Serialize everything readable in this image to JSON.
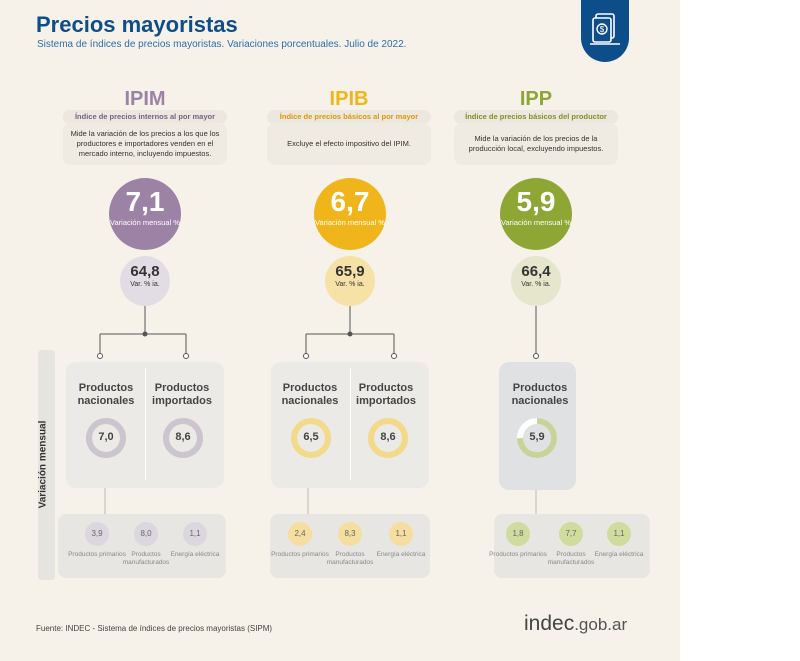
{
  "header": {
    "title": "Precios mayoristas",
    "subtitle": "Sistema de índices de precios mayoristas. Variaciones porcentuales. Julio de 2022."
  },
  "colors": {
    "ipim": "#9c82a5",
    "ipib": "#f0b51a",
    "ipp": "#8da634",
    "brand": "#0d4d8a"
  },
  "icon": "money-document-icon",
  "indices": [
    {
      "code": "IPIM",
      "name": "Índice de precios internos al por mayor",
      "description": "Mide la variación de los precios a los que los productores e importadores venden en el mercado interno, incluyendo impuestos.",
      "monthly": "7,1",
      "monthly_label": "Variación mensual %",
      "yearly": "64,8",
      "yearly_label": "Var. % ia.",
      "components": [
        {
          "label": "Productos nacionales",
          "value": "7,0",
          "level": 7.0
        },
        {
          "label": "Productos importados",
          "value": "8,6",
          "level": 8.6
        }
      ],
      "breakdown": [
        {
          "value": "3,9",
          "label": "Productos primarios"
        },
        {
          "value": "8,0",
          "label": "Productos manufacturados"
        },
        {
          "value": "1,1",
          "label": "Energía eléctrica"
        }
      ]
    },
    {
      "code": "IPIB",
      "name": "Índice de precios básicos al por mayor",
      "description": "Excluye el efecto impositivo del IPIM.",
      "monthly": "6,7",
      "monthly_label": "Variación mensual %",
      "yearly": "65,9",
      "yearly_label": "Var. % ia.",
      "components": [
        {
          "label": "Productos nacionales",
          "value": "6,5",
          "level": 6.5
        },
        {
          "label": "Productos importados",
          "value": "8,6",
          "level": 8.6
        }
      ],
      "breakdown": [
        {
          "value": "2,4",
          "label": "Productos primarios"
        },
        {
          "value": "8,3",
          "label": "Productos manufacturados"
        },
        {
          "value": "1,1",
          "label": "Energía eléctrica"
        }
      ]
    },
    {
      "code": "IPP",
      "name": "Índice de precios básicos del productor",
      "description": "Mide la variación de los precios de la producción local, excluyendo impuestos.",
      "monthly": "5,9",
      "monthly_label": "Variación mensual %",
      "yearly": "66,4",
      "yearly_label": "Var. % ia.",
      "components": [
        {
          "label": "Productos nacionales",
          "value": "5,9",
          "level": 5.9
        }
      ],
      "breakdown": [
        {
          "value": "1,8",
          "label": "Productos primarios"
        },
        {
          "value": "7,7",
          "label": "Productos manufacturados"
        },
        {
          "value": "1,1",
          "label": "Energía eléctrica"
        }
      ]
    }
  ],
  "sidebar_label": "Variación mensual",
  "footer": {
    "source": "Fuente: INDEC - Sistema de índices de precios mayoristas (SIPM)",
    "brand_main": "indec",
    "brand_suffix": ".gob.ar"
  }
}
